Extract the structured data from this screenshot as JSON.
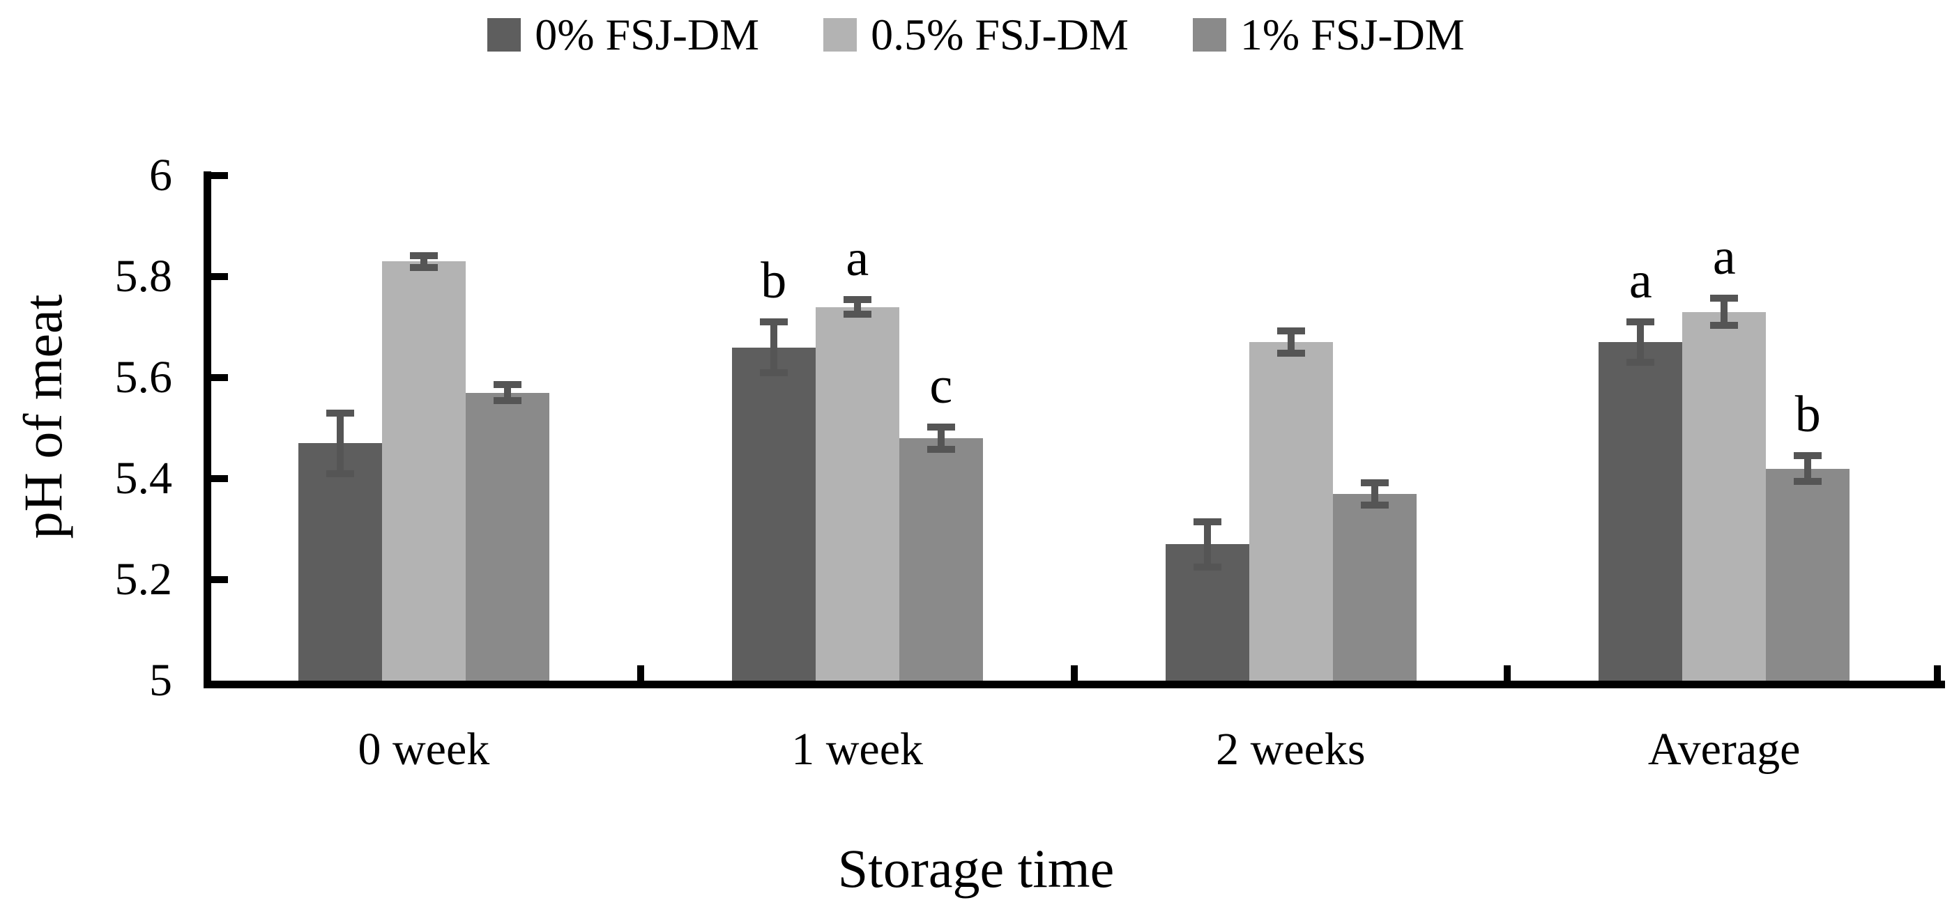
{
  "chart_data": {
    "type": "bar",
    "title": "",
    "xlabel": "Storage time",
    "ylabel": "pH of meat",
    "categories": [
      "0 week",
      "1 week",
      "2 weeks",
      "Average"
    ],
    "series": [
      {
        "name": "0% FSJ-DM",
        "color": "#5E5E5E",
        "values": [
          5.47,
          5.66,
          5.27,
          5.67
        ],
        "errors": [
          0.06,
          0.05,
          0.045,
          0.04
        ],
        "letters": [
          "",
          "b",
          "",
          "a"
        ]
      },
      {
        "name": "0.5% FSJ-DM",
        "color": "#B3B3B3",
        "values": [
          5.83,
          5.74,
          5.67,
          5.73
        ],
        "errors": [
          0.012,
          0.015,
          0.022,
          0.027
        ],
        "letters": [
          "",
          "a",
          "",
          "a"
        ]
      },
      {
        "name": "1% FSJ-DM",
        "color": "#8A8A8A",
        "values": [
          5.57,
          5.48,
          5.37,
          5.42
        ],
        "errors": [
          0.016,
          0.022,
          0.022,
          0.025
        ],
        "letters": [
          "",
          "c",
          "",
          "b"
        ]
      }
    ],
    "ylim": [
      5,
      6
    ],
    "ytick_step": 0.2,
    "ytick_labels": [
      "5",
      "5.2",
      "5.4",
      "5.6",
      "5.8",
      "6"
    ],
    "legend_position": "top",
    "grid": false,
    "bar_border": "none",
    "error_bar_color": "#555555",
    "axis_color": "#000000",
    "background_color": "#FFFFFF"
  }
}
